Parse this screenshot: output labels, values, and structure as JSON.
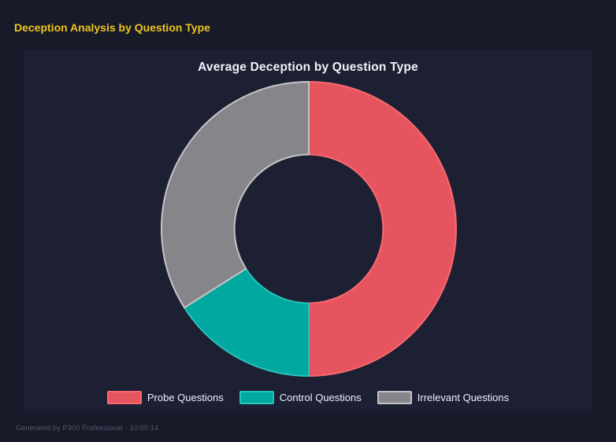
{
  "page": {
    "title": "Deception Analysis by Question Type",
    "title_color": "#f0c419",
    "background_color": "#171a28",
    "panel_background_color": "#1d2033"
  },
  "chart_data": {
    "type": "pie",
    "variant": "doughnut",
    "title": "Average Deception by Question Type",
    "categories": [
      "Probe Questions",
      "Control Questions",
      "Irrelevant Questions"
    ],
    "values_percent": [
      50,
      16,
      34
    ],
    "colors": [
      "#e6555f",
      "#00a8a0",
      "#86868a"
    ],
    "border_colors": [
      "#f9696f",
      "#29c3ba",
      "#c4c4c8"
    ],
    "start_angle_deg": 0,
    "direction": "clockwise",
    "inner_radius_ratio": 0.505,
    "legend_position": "bottom",
    "title_color": "#f2f3f7",
    "legend_text_color": "#eef0f4"
  },
  "footer": {
    "text": "Generated by P300 Professional - 10:05:14"
  }
}
